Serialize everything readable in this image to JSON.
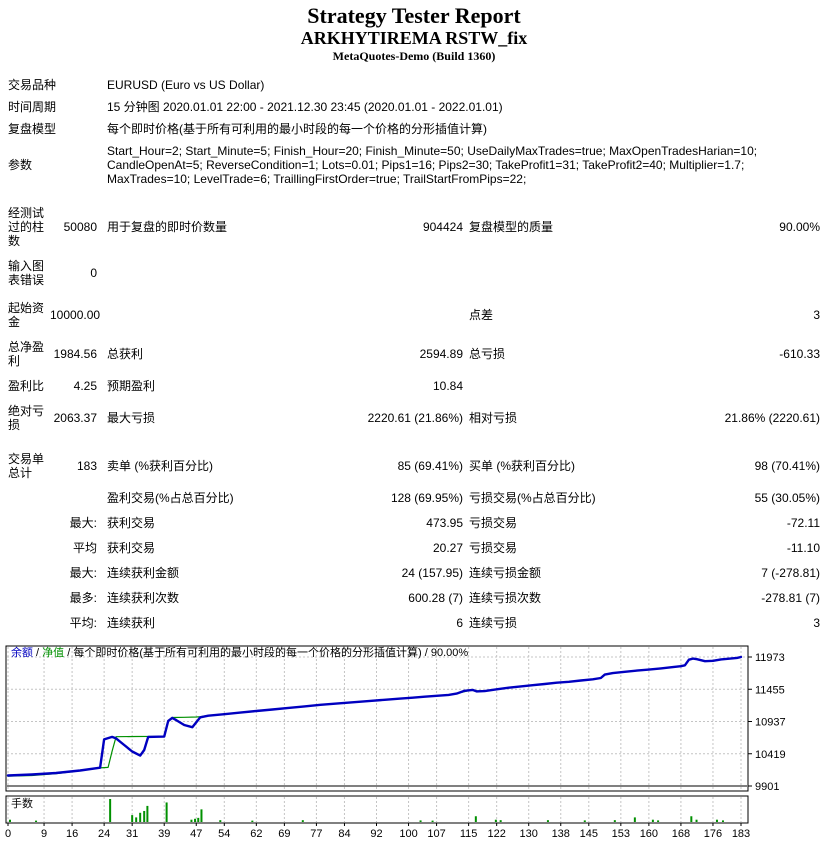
{
  "header": {
    "title": "Strategy Tester Report",
    "subtitle": "ARKHYTIREMA RSTW_fix",
    "build": "MetaQuotes-Demo (Build 1360)"
  },
  "info_rows": [
    {
      "label": "交易品种",
      "value": "EURUSD (Euro vs US Dollar)"
    },
    {
      "label": "时间周期",
      "value": "15 分钟图 2020.01.01 22:00 - 2021.12.30 23:45 (2020.01.01 - 2022.01.01)"
    },
    {
      "label": "复盘模型",
      "value": "每个即时价格(基于所有可利用的最小时段的每一个价格的分形插值计算)"
    },
    {
      "label": "参数",
      "value": "Start_Hour=2; Start_Minute=5; Finish_Hour=20; Finish_Minute=50; UseDailyMaxTrades=true; MaxOpenTradesHarian=10; CandleOpenAt=5; ReverseCondition=1; Lots=0.01; Pips1=16; Pips2=30; TakeProfit1=31; TakeProfit2=40; Multiplier=1.7; MaxTrades=10; LevelTrade=6; TraillingFirstOrder=true; TrailStartFromPips=22;"
    }
  ],
  "stat_rows": [
    {
      "label": "经测试过的柱数",
      "v1": "50080",
      "l2": "用于复盘的即时价数量",
      "v2": "904424",
      "l3": "复盘模型的质量",
      "v3": "90.00%",
      "gap": "lg"
    },
    {
      "label": "输入图表错误",
      "v1": "0",
      "l2": "",
      "v2": "",
      "l3": "",
      "v3": "",
      "gap": "sm"
    },
    {
      "label": "起始资金",
      "v1": "10000.00",
      "l2": "",
      "v2": "",
      "l3": "点差",
      "v3": "3",
      "gap": "md"
    },
    {
      "label": "总净盈利",
      "v1": "1984.56",
      "l2": "总获利",
      "v2": "2594.89",
      "l3": "总亏损",
      "v3": "-610.33",
      "gap": "sm"
    },
    {
      "label": "盈利比",
      "v1": "4.25",
      "l2": "预期盈利",
      "v2": "10.84",
      "l3": "",
      "v3": "",
      "gap": ""
    },
    {
      "label": "绝对亏损",
      "v1": "2063.37",
      "l2": "最大亏损",
      "v2": "2220.61 (21.86%)",
      "l3": "相对亏损",
      "v3": "21.86% (2220.61)",
      "gap": ""
    },
    {
      "label": "交易单总计",
      "v1": "183",
      "l2": "卖单 (%获利百分比)",
      "v2": "85 (69.41%)",
      "l3": "买单 (%获利百分比)",
      "v3": "98 (70.41%)",
      "gap": "lg"
    },
    {
      "label": "",
      "v1": "",
      "l2": "盈利交易(%占总百分比)",
      "v2": "128 (69.95%)",
      "l3": "亏损交易(%占总百分比)",
      "v3": "55 (30.05%)",
      "gap": ""
    },
    {
      "label": "",
      "v1": "最大:",
      "l2": "获利交易",
      "v2": "473.95",
      "l3": "亏损交易",
      "v3": "-72.11",
      "gap": ""
    },
    {
      "label": "",
      "v1": "平均",
      "l2": "获利交易",
      "v2": "20.27",
      "l3": "亏损交易",
      "v3": "-11.10",
      "gap": ""
    },
    {
      "label": "",
      "v1": "最大:",
      "l2": "连续获利金额",
      "v2": "24 (157.95)",
      "l3": "连续亏损金额",
      "v3": "7 (-278.81)",
      "gap": ""
    },
    {
      "label": "",
      "v1": "最多:",
      "l2": "连续获利次数",
      "v2": "600.28 (7)",
      "l3": "连续亏损次数",
      "v3": "-278.81 (7)",
      "gap": ""
    },
    {
      "label": "",
      "v1": "平均:",
      "l2": "连续获利",
      "v2": "6",
      "l3": "连续亏损",
      "v3": "3",
      "gap": ""
    }
  ],
  "chart_data": {
    "type": "line",
    "legend_parts": [
      {
        "text": "余额",
        "color": "#0000C0"
      },
      {
        "text": " / ",
        "color": "#000000"
      },
      {
        "text": "净值",
        "color": "#009000"
      },
      {
        "text": " / 每个即时价格(基于所有可利用的最小时段的每一个价格的分形插值计算) / 90.00%",
        "color": "#000000"
      }
    ],
    "x_ticks": [
      0,
      9,
      16,
      24,
      31,
      39,
      47,
      54,
      62,
      69,
      77,
      84,
      92,
      100,
      107,
      115,
      122,
      130,
      138,
      145,
      153,
      160,
      168,
      176,
      183
    ],
    "y_ticks": [
      11973,
      11455,
      10937,
      10419,
      9901
    ],
    "x_range": [
      0,
      183
    ],
    "y_range": [
      9901,
      11973
    ],
    "grid": true,
    "colors": {
      "balance": "#0000C0",
      "equity": "#009000",
      "grid": "#C4C4C4",
      "bars": "#009000"
    },
    "series": [
      {
        "name": "余额",
        "color": "#0000C0",
        "width": 2.4,
        "points": [
          [
            0,
            10070
          ],
          [
            6,
            10085
          ],
          [
            12,
            10110
          ],
          [
            18,
            10150
          ],
          [
            23,
            10195
          ],
          [
            24,
            10650
          ],
          [
            26,
            10690
          ],
          [
            27,
            10665
          ],
          [
            29,
            10560
          ],
          [
            31,
            10455
          ],
          [
            33,
            10390
          ],
          [
            34,
            10480
          ],
          [
            35,
            10690
          ],
          [
            39,
            10695
          ],
          [
            40,
            10945
          ],
          [
            41,
            10995
          ],
          [
            42,
            10960
          ],
          [
            44,
            10880
          ],
          [
            46,
            10845
          ],
          [
            47,
            10925
          ],
          [
            48,
            11005
          ],
          [
            50,
            11030
          ],
          [
            54,
            11055
          ],
          [
            58,
            11080
          ],
          [
            62,
            11105
          ],
          [
            66,
            11130
          ],
          [
            70,
            11155
          ],
          [
            74,
            11180
          ],
          [
            78,
            11205
          ],
          [
            82,
            11225
          ],
          [
            86,
            11245
          ],
          [
            90,
            11265
          ],
          [
            94,
            11285
          ],
          [
            98,
            11305
          ],
          [
            101,
            11320
          ],
          [
            104,
            11335
          ],
          [
            107,
            11350
          ],
          [
            110,
            11365
          ],
          [
            112,
            11385
          ],
          [
            114,
            11430
          ],
          [
            116,
            11445
          ],
          [
            117,
            11420
          ],
          [
            119,
            11425
          ],
          [
            122,
            11455
          ],
          [
            125,
            11480
          ],
          [
            128,
            11500
          ],
          [
            131,
            11520
          ],
          [
            134,
            11540
          ],
          [
            137,
            11560
          ],
          [
            140,
            11575
          ],
          [
            143,
            11595
          ],
          [
            146,
            11615
          ],
          [
            148,
            11635
          ],
          [
            149,
            11690
          ],
          [
            151,
            11715
          ],
          [
            154,
            11735
          ],
          [
            157,
            11755
          ],
          [
            160,
            11770
          ],
          [
            163,
            11790
          ],
          [
            166,
            11810
          ],
          [
            168,
            11825
          ],
          [
            169,
            11840
          ],
          [
            170,
            11930
          ],
          [
            171,
            11948
          ],
          [
            172,
            11938
          ],
          [
            174,
            11905
          ],
          [
            176,
            11912
          ],
          [
            178,
            11935
          ],
          [
            180,
            11945
          ],
          [
            182,
            11958
          ],
          [
            183,
            11973
          ]
        ]
      },
      {
        "name": "净值",
        "color": "#009000",
        "width": 1.2,
        "points": [
          [
            0,
            10060
          ],
          [
            6,
            10070
          ],
          [
            12,
            10100
          ],
          [
            18,
            10145
          ],
          [
            23,
            10192
          ],
          [
            25,
            10200
          ],
          [
            26,
            10460
          ],
          [
            27,
            10693
          ],
          [
            32,
            10696
          ],
          [
            39,
            10700
          ],
          [
            40,
            10952
          ],
          [
            41,
            11002
          ],
          [
            44,
            11005
          ],
          [
            47,
            11010
          ],
          [
            48,
            11014
          ],
          [
            50,
            11034
          ],
          [
            54,
            11058
          ],
          [
            58,
            11082
          ],
          [
            62,
            11107
          ],
          [
            66,
            11132
          ],
          [
            70,
            11157
          ],
          [
            74,
            11182
          ],
          [
            78,
            11207
          ],
          [
            82,
            11227
          ],
          [
            86,
            11247
          ],
          [
            90,
            11267
          ],
          [
            94,
            11287
          ],
          [
            98,
            11307
          ],
          [
            101,
            11322
          ],
          [
            104,
            11337
          ],
          [
            107,
            11352
          ],
          [
            110,
            11368
          ],
          [
            112,
            11388
          ],
          [
            114,
            11415
          ],
          [
            116,
            11450
          ],
          [
            117,
            11428
          ],
          [
            119,
            11428
          ],
          [
            122,
            11457
          ],
          [
            125,
            11482
          ],
          [
            128,
            11502
          ],
          [
            131,
            11522
          ],
          [
            134,
            11542
          ],
          [
            137,
            11562
          ],
          [
            140,
            11577
          ],
          [
            143,
            11597
          ],
          [
            146,
            11617
          ],
          [
            148,
            11637
          ],
          [
            149,
            11693
          ],
          [
            151,
            11718
          ],
          [
            154,
            11738
          ],
          [
            157,
            11757
          ],
          [
            160,
            11772
          ],
          [
            163,
            11792
          ],
          [
            166,
            11812
          ],
          [
            168,
            11827
          ],
          [
            169,
            11843
          ],
          [
            170,
            11933
          ],
          [
            171,
            11950
          ],
          [
            172,
            11940
          ],
          [
            174,
            11907
          ],
          [
            176,
            11914
          ],
          [
            178,
            11937
          ],
          [
            180,
            11947
          ],
          [
            182,
            11960
          ],
          [
            183,
            11975
          ]
        ]
      }
    ],
    "lots_panel": {
      "label": "手数",
      "bars": [
        [
          0.5,
          0.1
        ],
        [
          7,
          0.06
        ],
        [
          25.5,
          1.0
        ],
        [
          31,
          0.3
        ],
        [
          32,
          0.2
        ],
        [
          33,
          0.4
        ],
        [
          34,
          0.48
        ],
        [
          34.8,
          0.7
        ],
        [
          39.6,
          0.85
        ],
        [
          45.8,
          0.1
        ],
        [
          46.7,
          0.14
        ],
        [
          47.5,
          0.18
        ],
        [
          48.3,
          0.55
        ],
        [
          53,
          0.08
        ],
        [
          61,
          0.06
        ],
        [
          73.6,
          0.08
        ],
        [
          103,
          0.07
        ],
        [
          106,
          0.06
        ],
        [
          116.8,
          0.25
        ],
        [
          121.8,
          0.1
        ],
        [
          123,
          0.08
        ],
        [
          134.8,
          0.08
        ],
        [
          144,
          0.07
        ],
        [
          151.5,
          0.08
        ],
        [
          156.5,
          0.2
        ],
        [
          161,
          0.1
        ],
        [
          162.3,
          0.07
        ],
        [
          170.6,
          0.25
        ],
        [
          171.9,
          0.1
        ],
        [
          177,
          0.1
        ],
        [
          178.5,
          0.07
        ]
      ]
    }
  }
}
